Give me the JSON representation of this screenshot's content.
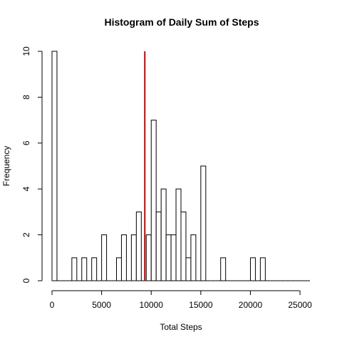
{
  "chart_data": {
    "type": "bar",
    "title": "Histogram of Daily Sum of Steps",
    "xlabel": "Total Steps",
    "ylabel": "Frequency",
    "bin_width": 500,
    "bin_starts": [
      0,
      2000,
      3000,
      4000,
      5000,
      6500,
      7000,
      8000,
      8500,
      9500,
      10000,
      10500,
      11000,
      11500,
      12000,
      12500,
      13000,
      13500,
      14000,
      15000,
      17000,
      20000,
      21000
    ],
    "values": [
      10,
      1,
      1,
      1,
      2,
      1,
      2,
      2,
      3,
      2,
      7,
      3,
      4,
      2,
      2,
      4,
      3,
      1,
      2,
      5,
      1,
      1,
      1
    ],
    "xlim": [
      0,
      26000
    ],
    "ylim": [
      0,
      10
    ],
    "x_ticks": [
      "0",
      "5000",
      "10000",
      "15000",
      "20000",
      "25000"
    ],
    "y_ticks": [
      "0",
      "2",
      "4",
      "6",
      "8",
      "10"
    ],
    "reference_line": {
      "x": 9354,
      "color": "#cc0000"
    },
    "grid": false,
    "bar_fill": "#ffffff",
    "bar_stroke": "#000000"
  }
}
